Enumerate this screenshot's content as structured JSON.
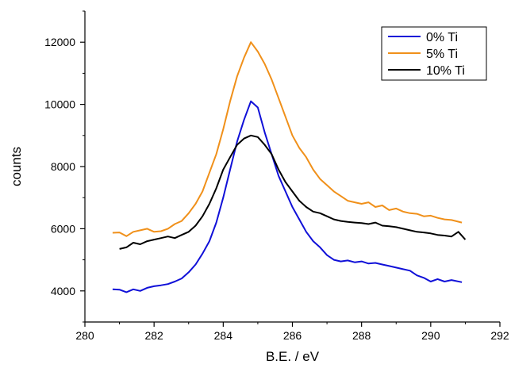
{
  "chart_data": {
    "type": "line",
    "title": "",
    "xlabel": "B.E. / eV",
    "ylabel": "counts",
    "xlim": [
      280,
      292
    ],
    "ylim": [
      3000,
      13000
    ],
    "xticks": [
      280,
      282,
      284,
      286,
      288,
      290,
      292
    ],
    "xtick_labels": [
      "280",
      "282",
      "284",
      "286",
      "288",
      "290",
      "292"
    ],
    "yticks": [
      4000,
      6000,
      8000,
      10000,
      12000
    ],
    "ytick_labels": [
      "4000",
      "6000",
      "8000",
      "10000",
      "12000"
    ],
    "grid": false,
    "legend_position": "top-right",
    "series": [
      {
        "name": "0% Ti",
        "color": "#1010d8",
        "points": [
          [
            280.8,
            4050
          ],
          [
            281.0,
            4040
          ],
          [
            281.2,
            3960
          ],
          [
            281.4,
            4050
          ],
          [
            281.6,
            4000
          ],
          [
            281.8,
            4100
          ],
          [
            282.0,
            4150
          ],
          [
            282.2,
            4180
          ],
          [
            282.4,
            4220
          ],
          [
            282.6,
            4300
          ],
          [
            282.8,
            4400
          ],
          [
            283.0,
            4600
          ],
          [
            283.2,
            4850
          ],
          [
            283.4,
            5200
          ],
          [
            283.6,
            5600
          ],
          [
            283.8,
            6200
          ],
          [
            284.0,
            7000
          ],
          [
            284.2,
            7900
          ],
          [
            284.4,
            8800
          ],
          [
            284.6,
            9500
          ],
          [
            284.8,
            10100
          ],
          [
            285.0,
            9900
          ],
          [
            285.2,
            9100
          ],
          [
            285.4,
            8400
          ],
          [
            285.6,
            7700
          ],
          [
            285.8,
            7200
          ],
          [
            286.0,
            6700
          ],
          [
            286.2,
            6300
          ],
          [
            286.4,
            5900
          ],
          [
            286.6,
            5600
          ],
          [
            286.8,
            5400
          ],
          [
            287.0,
            5150
          ],
          [
            287.2,
            5000
          ],
          [
            287.4,
            4950
          ],
          [
            287.6,
            4980
          ],
          [
            287.8,
            4920
          ],
          [
            288.0,
            4950
          ],
          [
            288.2,
            4880
          ],
          [
            288.4,
            4900
          ],
          [
            288.6,
            4850
          ],
          [
            288.8,
            4800
          ],
          [
            289.0,
            4750
          ],
          [
            289.2,
            4700
          ],
          [
            289.4,
            4650
          ],
          [
            289.6,
            4500
          ],
          [
            289.8,
            4420
          ],
          [
            290.0,
            4300
          ],
          [
            290.2,
            4380
          ],
          [
            290.4,
            4300
          ],
          [
            290.6,
            4350
          ],
          [
            290.9,
            4280
          ]
        ]
      },
      {
        "name": "5% Ti",
        "color": "#f0901a",
        "points": [
          [
            280.8,
            5870
          ],
          [
            281.0,
            5880
          ],
          [
            281.2,
            5760
          ],
          [
            281.4,
            5900
          ],
          [
            281.6,
            5950
          ],
          [
            281.8,
            6000
          ],
          [
            282.0,
            5900
          ],
          [
            282.2,
            5920
          ],
          [
            282.4,
            6000
          ],
          [
            282.6,
            6150
          ],
          [
            282.8,
            6250
          ],
          [
            283.0,
            6500
          ],
          [
            283.2,
            6800
          ],
          [
            283.4,
            7200
          ],
          [
            283.6,
            7800
          ],
          [
            283.8,
            8400
          ],
          [
            284.0,
            9200
          ],
          [
            284.2,
            10100
          ],
          [
            284.4,
            10900
          ],
          [
            284.6,
            11500
          ],
          [
            284.8,
            12000
          ],
          [
            285.0,
            11700
          ],
          [
            285.2,
            11300
          ],
          [
            285.4,
            10800
          ],
          [
            285.6,
            10200
          ],
          [
            285.8,
            9600
          ],
          [
            286.0,
            9000
          ],
          [
            286.2,
            8600
          ],
          [
            286.4,
            8300
          ],
          [
            286.6,
            7900
          ],
          [
            286.8,
            7600
          ],
          [
            287.0,
            7400
          ],
          [
            287.2,
            7200
          ],
          [
            287.4,
            7050
          ],
          [
            287.6,
            6900
          ],
          [
            287.8,
            6850
          ],
          [
            288.0,
            6800
          ],
          [
            288.2,
            6850
          ],
          [
            288.4,
            6700
          ],
          [
            288.6,
            6750
          ],
          [
            288.8,
            6600
          ],
          [
            289.0,
            6650
          ],
          [
            289.2,
            6550
          ],
          [
            289.4,
            6500
          ],
          [
            289.6,
            6480
          ],
          [
            289.8,
            6400
          ],
          [
            290.0,
            6420
          ],
          [
            290.2,
            6350
          ],
          [
            290.4,
            6300
          ],
          [
            290.6,
            6280
          ],
          [
            290.9,
            6200
          ]
        ]
      },
      {
        "name": "10% Ti",
        "color": "#000000",
        "points": [
          [
            281.0,
            5350
          ],
          [
            281.2,
            5400
          ],
          [
            281.4,
            5550
          ],
          [
            281.6,
            5500
          ],
          [
            281.8,
            5600
          ],
          [
            282.0,
            5650
          ],
          [
            282.2,
            5700
          ],
          [
            282.4,
            5750
          ],
          [
            282.6,
            5700
          ],
          [
            282.8,
            5800
          ],
          [
            283.0,
            5900
          ],
          [
            283.2,
            6100
          ],
          [
            283.4,
            6400
          ],
          [
            283.6,
            6800
          ],
          [
            283.8,
            7300
          ],
          [
            284.0,
            7900
          ],
          [
            284.2,
            8300
          ],
          [
            284.4,
            8700
          ],
          [
            284.6,
            8900
          ],
          [
            284.8,
            9000
          ],
          [
            285.0,
            8950
          ],
          [
            285.2,
            8700
          ],
          [
            285.4,
            8400
          ],
          [
            285.6,
            7900
          ],
          [
            285.8,
            7500
          ],
          [
            286.0,
            7200
          ],
          [
            286.2,
            6900
          ],
          [
            286.4,
            6700
          ],
          [
            286.6,
            6550
          ],
          [
            286.8,
            6500
          ],
          [
            287.0,
            6400
          ],
          [
            287.2,
            6300
          ],
          [
            287.4,
            6250
          ],
          [
            287.6,
            6220
          ],
          [
            287.8,
            6200
          ],
          [
            288.0,
            6180
          ],
          [
            288.2,
            6150
          ],
          [
            288.4,
            6200
          ],
          [
            288.6,
            6100
          ],
          [
            288.8,
            6080
          ],
          [
            289.0,
            6050
          ],
          [
            289.2,
            6000
          ],
          [
            289.4,
            5950
          ],
          [
            289.6,
            5900
          ],
          [
            289.8,
            5880
          ],
          [
            290.0,
            5850
          ],
          [
            290.2,
            5800
          ],
          [
            290.4,
            5780
          ],
          [
            290.6,
            5750
          ],
          [
            290.8,
            5900
          ],
          [
            291.0,
            5650
          ]
        ]
      }
    ]
  }
}
